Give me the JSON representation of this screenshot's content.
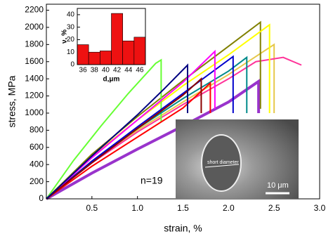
{
  "chart_data": [
    {
      "type": "line",
      "xlabel": "strain, %",
      "ylabel": "stress, MPa",
      "xlim": [
        0,
        3.0
      ],
      "ylim": [
        0,
        2270
      ],
      "xticks": [
        0.5,
        {
          "value": 1,
          "label": "1.0"
        },
        1.5,
        {
          "value": 2,
          "label": "2.0"
        },
        2.5,
        {
          "value": 3,
          "label": "3.0"
        }
      ],
      "yticks": [
        0,
        200,
        400,
        600,
        800,
        1000,
        1200,
        1400,
        1600,
        1800,
        2000,
        2200
      ],
      "annotations": [
        "n=19",
        "short diameter",
        "10 μm"
      ],
      "series": [
        {
          "color": "#9933cc",
          "x": [
            0,
            0.5,
            1.0,
            1.5,
            2.0,
            2.33,
            2.33
          ],
          "values": [
            0,
            300,
            580,
            850,
            1130,
            1370,
            1000
          ]
        },
        {
          "color": "#e6c84a",
          "x": [
            0,
            0.5,
            1.0,
            1.5,
            2.0,
            2.5,
            2.5
          ],
          "values": [
            0,
            440,
            800,
            1130,
            1450,
            1800,
            1000
          ]
        },
        {
          "color": "#ff3399",
          "x": [
            0,
            0.5,
            1.0,
            1.5,
            2.0,
            2.3,
            2.6,
            2.8
          ],
          "values": [
            0,
            420,
            780,
            1100,
            1400,
            1600,
            1650,
            1560
          ]
        },
        {
          "color": "#808000",
          "x": [
            0,
            0.5,
            1.0,
            1.5,
            2.0,
            2.35,
            2.35
          ],
          "values": [
            0,
            520,
            960,
            1380,
            1780,
            2060,
            1050
          ]
        },
        {
          "color": "#ffff00",
          "x": [
            0,
            0.5,
            1.0,
            1.5,
            2.0,
            2.45,
            2.45
          ],
          "values": [
            0,
            500,
            920,
            1320,
            1680,
            2030,
            1000
          ]
        },
        {
          "color": "#66ff33",
          "x": [
            0,
            0.3,
            0.6,
            0.9,
            1.2,
            1.26,
            1.26
          ],
          "values": [
            0,
            450,
            850,
            1230,
            1580,
            1620,
            900
          ]
        },
        {
          "color": "#008b8b",
          "x": [
            0,
            0.5,
            1.0,
            1.5,
            2.0,
            2.2,
            2.2
          ],
          "values": [
            0,
            430,
            820,
            1170,
            1490,
            1650,
            1000
          ]
        },
        {
          "color": "#0000cc",
          "x": [
            0,
            0.5,
            1.0,
            1.5,
            2.05,
            2.05
          ],
          "values": [
            0,
            440,
            840,
            1230,
            1660,
            1000
          ]
        },
        {
          "color": "#ff00ff",
          "x": [
            0,
            0.5,
            1.0,
            1.5,
            1.85,
            1.85
          ],
          "values": [
            0,
            480,
            920,
            1360,
            1720,
            1050
          ]
        },
        {
          "color": "#ff0000",
          "x": [
            0,
            0.5,
            1.0,
            1.5,
            1.8,
            1.8
          ],
          "values": [
            0,
            380,
            720,
            1060,
            1350,
            1000
          ]
        },
        {
          "color": "#8b0000",
          "x": [
            0,
            0.5,
            1.0,
            1.5,
            1.7,
            1.7
          ],
          "values": [
            0,
            420,
            820,
            1210,
            1400,
            1000
          ]
        },
        {
          "color": "#000080",
          "x": [
            0,
            0.5,
            1.0,
            1.3,
            1.55,
            1.55
          ],
          "values": [
            0,
            500,
            980,
            1290,
            1560,
            1000
          ]
        }
      ]
    },
    {
      "type": "histogram",
      "xlabel": "d,μm",
      "ylabel": "ν, %",
      "color": "#ee1111",
      "bins": [
        35,
        37,
        39,
        41,
        43,
        45,
        47
      ],
      "values": [
        16,
        10,
        11,
        41,
        19,
        22
      ],
      "xlim": [
        35,
        47
      ],
      "ylim": [
        0,
        45
      ],
      "xticks": [
        36,
        38,
        40,
        42,
        44,
        46
      ],
      "yticks": [
        0,
        10,
        20,
        30,
        40
      ]
    }
  ]
}
